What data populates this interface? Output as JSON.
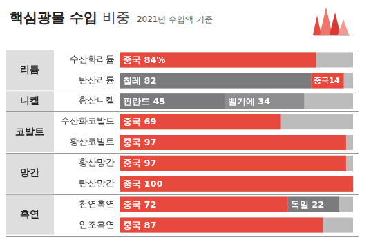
{
  "chart_data": {
    "type": "bar",
    "orientation": "horizontal",
    "stacked": true,
    "data_labels": true,
    "tick_labels": "y",
    "grid": false,
    "title": "핵심광물 수입 비중",
    "subtitle": "2021년 수입액 기준",
    "groups": [
      "리튬",
      "리튬",
      "니켈",
      "코발트",
      "코발트",
      "망간",
      "망간",
      "흑연",
      "흑연"
    ],
    "categories": [
      "수산화리튬",
      "탄산리튬",
      "황산니켈",
      "수산화코발트",
      "황산코발트",
      "황산망간",
      "탄산망간",
      "천연흑연",
      "인조흑연"
    ],
    "xlim": [
      0,
      100
    ],
    "series": [
      {
        "name": "칠레",
        "color": "#7b7b7e",
        "values": [
          null,
          82,
          null,
          null,
          null,
          null,
          null,
          null,
          null
        ]
      },
      {
        "name": "핀란드",
        "color": "#7b7b7e",
        "values": [
          null,
          null,
          45,
          null,
          null,
          null,
          null,
          null,
          null
        ]
      },
      {
        "name": "중국",
        "color": "#e8493f",
        "values": [
          84,
          14,
          null,
          69,
          97,
          97,
          100,
          72,
          87
        ],
        "value_labels": [
          "84%",
          "14",
          null,
          "69",
          "97",
          "97",
          "100",
          "72",
          "87"
        ]
      },
      {
        "name": "벨기에",
        "color": "#8e8e91",
        "values": [
          null,
          null,
          34,
          null,
          null,
          null,
          null,
          null,
          null
        ]
      },
      {
        "name": "독일",
        "color": "#7b7b7e",
        "values": [
          null,
          null,
          null,
          null,
          null,
          null,
          null,
          22,
          null
        ]
      }
    ]
  }
}
